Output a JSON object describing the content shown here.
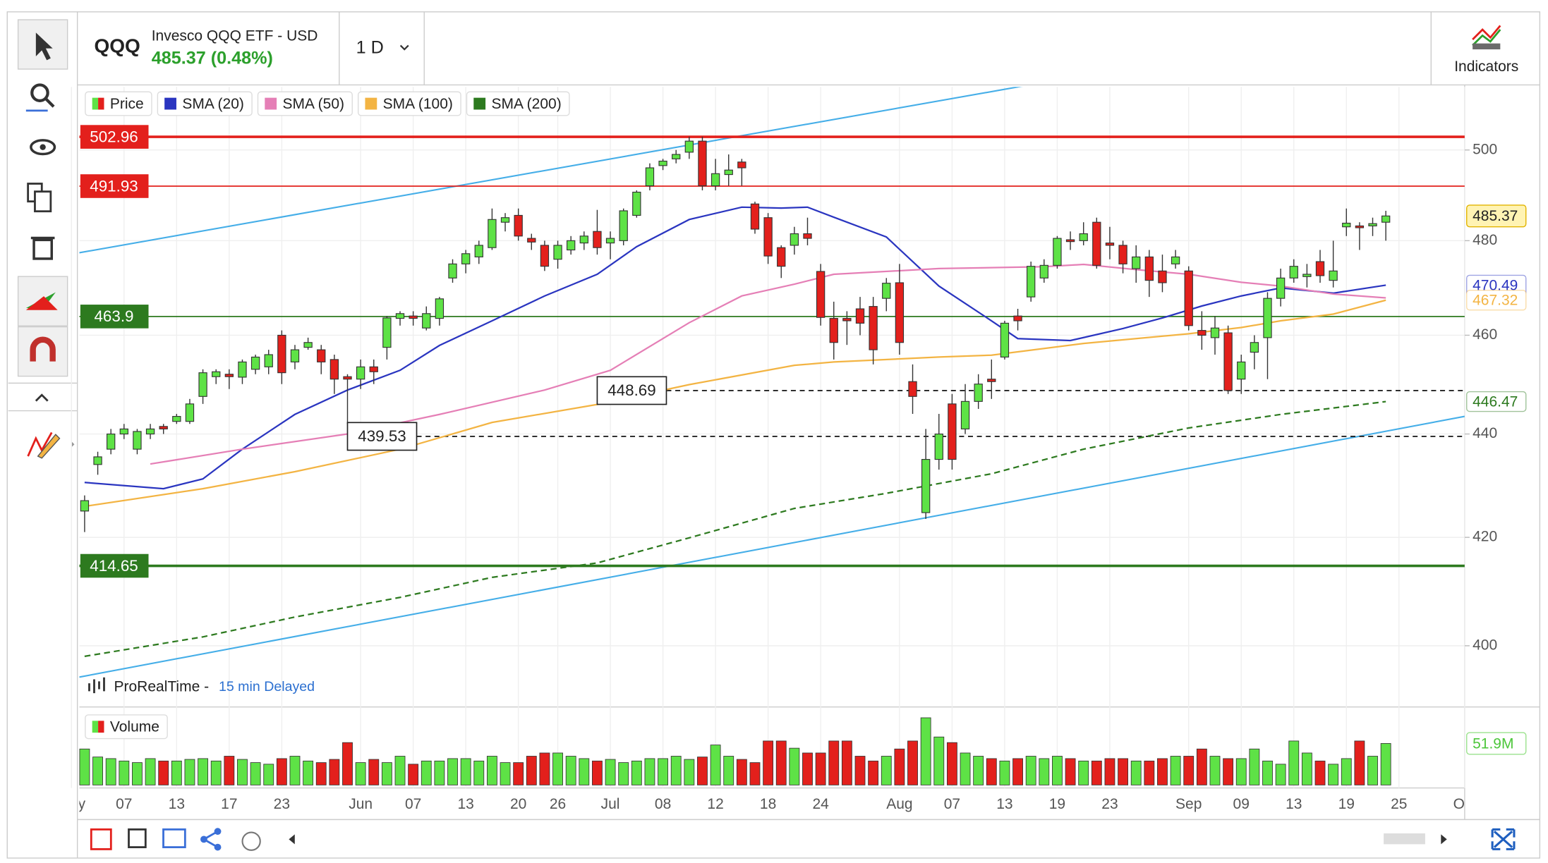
{
  "header": {
    "symbol": "QQQ",
    "name": "Invesco QQQ ETF - USD",
    "price": "485.37 (0.48%)",
    "interval": "1 D",
    "indicators": "Indicators"
  },
  "chart_data": [
    {
      "type": "candlestick",
      "name": "Price",
      "up_color": "#5ee246",
      "down_color": "#e3201c",
      "x": [
        1,
        2,
        3,
        4,
        5,
        6,
        7,
        8,
        9,
        10,
        11,
        12,
        13,
        14,
        15,
        16,
        17,
        18,
        19,
        20,
        21,
        22,
        23,
        24,
        25,
        26,
        27,
        28,
        29,
        30,
        31,
        32,
        33,
        34,
        35,
        36,
        37,
        38,
        39,
        40,
        41,
        42,
        43,
        44,
        45,
        46,
        47,
        48,
        49,
        50,
        51,
        52,
        53,
        54,
        55,
        56,
        57,
        58,
        59,
        60,
        61,
        62,
        63,
        64,
        65,
        66,
        67,
        68,
        69,
        70,
        71,
        72,
        73,
        74,
        75,
        76,
        77,
        78,
        79,
        80,
        81,
        82,
        83,
        84,
        85,
        86,
        87,
        88,
        89,
        90,
        91,
        92,
        93,
        94,
        95,
        96,
        97,
        98,
        99,
        100
      ],
      "open": [
        425,
        434,
        437,
        440,
        437,
        440,
        441.5,
        442.5,
        442.5,
        447.5,
        451.5,
        452,
        451.4,
        453,
        453.5,
        460,
        454.5,
        457.5,
        457,
        455,
        451.5,
        451,
        453.5,
        457.5,
        463.5,
        464,
        461.5,
        463.5,
        472,
        475,
        476.5,
        478.5,
        484,
        485.5,
        480.5,
        479,
        476,
        478,
        479.5,
        482,
        479.5,
        480,
        485.5,
        492,
        496.5,
        498,
        499.5,
        502,
        492,
        494.5,
        497.3,
        488,
        485,
        478.5,
        479,
        481.5,
        473.4,
        463.5,
        463.5,
        465.5,
        466,
        467.7,
        471,
        450.5,
        424.7,
        435,
        446,
        441,
        446.5,
        451,
        455.5,
        464,
        468,
        472,
        474.7,
        480.2,
        480,
        484,
        479.5,
        479,
        474,
        476.5,
        473.5,
        475,
        473.5,
        461,
        459.5,
        460.5,
        451,
        456.5,
        459.5,
        467.7,
        472,
        472.3,
        475.5,
        471.5,
        483,
        483.2,
        483.2,
        484
      ],
      "high": [
        428,
        436.5,
        441,
        442,
        441,
        442,
        442,
        444,
        447,
        453,
        453,
        453,
        455,
        456,
        457,
        461,
        458,
        459.5,
        458,
        456,
        452,
        455,
        455,
        464,
        465,
        465,
        466,
        468,
        476,
        478,
        480,
        487,
        486,
        487,
        481.5,
        480,
        480,
        481,
        482,
        486.7,
        482,
        487,
        491,
        497,
        498,
        500,
        503,
        503,
        498,
        499,
        498,
        488.5,
        486,
        479,
        483,
        485,
        475,
        467,
        465,
        468,
        468,
        472,
        475,
        454,
        441,
        444,
        448,
        450,
        452,
        455,
        463,
        465.5,
        475.5,
        476,
        481,
        482,
        484,
        485,
        483,
        480,
        479,
        478,
        477,
        478,
        474.5,
        465,
        464,
        462,
        456,
        460,
        469,
        474,
        476,
        475,
        478,
        480,
        487,
        484,
        485,
        486.5
      ],
      "low": [
        421,
        432,
        436,
        439,
        436,
        439,
        440,
        442,
        442,
        446,
        450,
        449,
        450,
        452,
        452,
        450,
        453,
        457,
        452,
        448,
        442,
        449,
        450,
        455,
        462,
        462,
        461,
        462,
        471,
        473,
        475,
        478,
        482,
        480,
        478,
        473.5,
        474,
        477,
        478,
        477,
        476,
        479,
        485,
        491,
        495.5,
        497,
        498,
        491,
        491,
        492,
        492,
        481.5,
        475,
        472,
        477,
        479,
        462,
        455,
        458,
        460,
        454,
        465,
        456,
        444,
        423.5,
        433,
        433,
        440,
        445,
        447,
        455,
        461,
        467,
        471,
        474,
        478,
        479,
        474,
        476,
        473,
        471,
        468,
        469,
        474,
        461,
        457,
        456,
        448,
        448,
        453,
        451,
        466,
        471,
        470,
        471,
        470,
        481,
        478,
        481,
        480
      ],
      "close": [
        427,
        435.5,
        440,
        441,
        440.5,
        441,
        441,
        443.5,
        446,
        452.3,
        452.5,
        451.5,
        454.5,
        455.5,
        456,
        452.3,
        457,
        458.5,
        454.5,
        451,
        451,
        453.5,
        452.5,
        463.6,
        464.5,
        463.5,
        464.5,
        467.6,
        475,
        477.2,
        479,
        484.6,
        485,
        481,
        479.7,
        474.5,
        479,
        480,
        481,
        478.5,
        480.5,
        486.5,
        490.6,
        496,
        497.5,
        499,
        502,
        492,
        494.7,
        495.5,
        496,
        482.5,
        476.7,
        474.5,
        481.5,
        480.5,
        463.7,
        458.5,
        463,
        462.5,
        457,
        470.9,
        458.5,
        447.5,
        435,
        440,
        435,
        446.5,
        450,
        450.5,
        462.5,
        463,
        474.5,
        474.7,
        480.5,
        479.8,
        481.5,
        474.7,
        479,
        475,
        476.5,
        471.5,
        471,
        476.5,
        462,
        460,
        461.5,
        448.7,
        454.5,
        458.5,
        467.7,
        472,
        474.5,
        472.8,
        472.5,
        473.5,
        483.8,
        482.8,
        483.7,
        485.37
      ],
      "xlim": [
        0.6,
        106
      ],
      "ylim": [
        389.3,
        514.4
      ],
      "log_scale": true,
      "grid": true,
      "yticks": [
        400,
        420,
        440,
        460,
        480,
        500
      ],
      "xticks": [
        {
          "value": 0,
          "label": "May"
        },
        {
          "value": 4,
          "label": "07"
        },
        {
          "value": 8,
          "label": "13"
        },
        {
          "value": 12,
          "label": "17"
        },
        {
          "value": 16,
          "label": "23"
        },
        {
          "value": 22,
          "label": "Jun"
        },
        {
          "value": 26,
          "label": "07"
        },
        {
          "value": 30,
          "label": "13"
        },
        {
          "value": 34,
          "label": "20"
        },
        {
          "value": 37,
          "label": "26"
        },
        {
          "value": 41,
          "label": "Jul"
        },
        {
          "value": 45,
          "label": "08"
        },
        {
          "value": 49,
          "label": "12"
        },
        {
          "value": 53,
          "label": "18"
        },
        {
          "value": 57,
          "label": "24"
        },
        {
          "value": 63,
          "label": "Aug"
        },
        {
          "value": 67,
          "label": "07"
        },
        {
          "value": 71,
          "label": "13"
        },
        {
          "value": 75,
          "label": "19"
        },
        {
          "value": 79,
          "label": "23"
        },
        {
          "value": 85,
          "label": "Sep"
        },
        {
          "value": 89,
          "label": "09"
        },
        {
          "value": 93,
          "label": "13"
        },
        {
          "value": 97,
          "label": "19"
        },
        {
          "value": 101,
          "label": "25"
        },
        {
          "value": 106,
          "label": "Oct"
        }
      ],
      "sma": [
        {
          "name": "SMA (20)",
          "color": "#2a35c0",
          "dashed": false,
          "axis_label": true,
          "x": [
            1,
            7,
            10,
            13,
            17,
            21,
            25,
            28,
            32,
            36,
            40,
            43,
            47,
            51,
            54,
            56,
            58,
            62,
            66,
            70,
            72,
            76,
            80,
            83,
            86,
            89,
            92,
            96,
            100
          ],
          "values": [
            430.5,
            429.3,
            431.2,
            437,
            443.9,
            448.8,
            452.8,
            457.9,
            463,
            468.2,
            472.8,
            478.7,
            484.6,
            487.3,
            487.1,
            487.3,
            485.1,
            480.8,
            470.3,
            463,
            459.3,
            458.9,
            461.4,
            463.6,
            466.1,
            468.2,
            469.9,
            468.8,
            470.49
          ]
        },
        {
          "name": "SMA (50)",
          "color": "#e57fb6",
          "dashed": false,
          "axis_label": false,
          "x": [
            6,
            13,
            21,
            28,
            36,
            41,
            47,
            51,
            55,
            58,
            66,
            74,
            77,
            81,
            85,
            89,
            92,
            96,
            100
          ],
          "values": [
            434.1,
            437,
            440,
            443.9,
            448.8,
            452.8,
            462.6,
            468.2,
            470.7,
            472.8,
            474.0,
            474.4,
            474.9,
            473.8,
            472.8,
            471.1,
            470.3,
            468.6,
            467.8
          ]
        },
        {
          "name": "SMA (100)",
          "color": "#f3b443",
          "dashed": false,
          "axis_label": true,
          "x": [
            1,
            10,
            17,
            25,
            32,
            40,
            47,
            55,
            58,
            66,
            70,
            77,
            85,
            89,
            92,
            96,
            100
          ],
          "values": [
            425.9,
            429.3,
            432.6,
            437,
            442.3,
            445.9,
            449.9,
            453.8,
            454.5,
            455.5,
            455.9,
            458.3,
            460.3,
            461.6,
            463,
            464.4,
            467.32
          ]
        },
        {
          "name": "SMA (200)",
          "color": "#2d7a1f",
          "dashed": true,
          "axis_label": true,
          "x": [
            1,
            10,
            17,
            25,
            32,
            40,
            47,
            55,
            62,
            70,
            77,
            85,
            92,
            100
          ],
          "values": [
            398.1,
            401.6,
            405.2,
            408.8,
            412.5,
            415.2,
            419.9,
            425.5,
            428.4,
            432.2,
            437,
            441.2,
            443.9,
            446.47
          ]
        }
      ],
      "levels": [
        {
          "value": 502.96,
          "color": "#e3201c",
          "style": "thick"
        },
        {
          "value": 491.93,
          "color": "#e3201c",
          "style": "thin"
        },
        {
          "value": 463.9,
          "color": "#2d7a1f",
          "style": "thin"
        },
        {
          "value": 414.65,
          "color": "#2d7a1f",
          "style": "thick"
        }
      ],
      "dashed_levels": [
        {
          "value": 448.69,
          "x": 40
        },
        {
          "value": 439.53,
          "x": 21
        }
      ],
      "trendline_color": "#45aee8",
      "trendlines": [
        {
          "x": [
            0.6,
            72.4
          ],
          "values": [
            477.4,
            514.6
          ]
        },
        {
          "x": [
            0.6,
            106
          ],
          "values": [
            394.4,
            443.5
          ]
        }
      ],
      "source": "ProRealTime -",
      "delay": "15 min Delayed"
    },
    {
      "type": "bar",
      "title": "Volume",
      "values": [
        45,
        35,
        33,
        30,
        28,
        33,
        30,
        30,
        32,
        33,
        30,
        36,
        32,
        28,
        26,
        33,
        36,
        30,
        28,
        32,
        53,
        28,
        32,
        28,
        36,
        26,
        30,
        30,
        33,
        33,
        30,
        36,
        28,
        28,
        36,
        40,
        40,
        36,
        33,
        30,
        32,
        28,
        30,
        33,
        33,
        36,
        32,
        35,
        50,
        36,
        32,
        28,
        55,
        55,
        46,
        40,
        40,
        55,
        55,
        36,
        30,
        36,
        45,
        55,
        84,
        60,
        53,
        40,
        36,
        33,
        30,
        33,
        36,
        33,
        36,
        33,
        30,
        30,
        33,
        33,
        30,
        30,
        33,
        36,
        36,
        45,
        36,
        33,
        33,
        45,
        30,
        26,
        55,
        40,
        30,
        26,
        33,
        55,
        36,
        51.9
      ],
      "ylim": [
        0,
        95
      ],
      "last_value_label": "51.9M"
    }
  ]
}
